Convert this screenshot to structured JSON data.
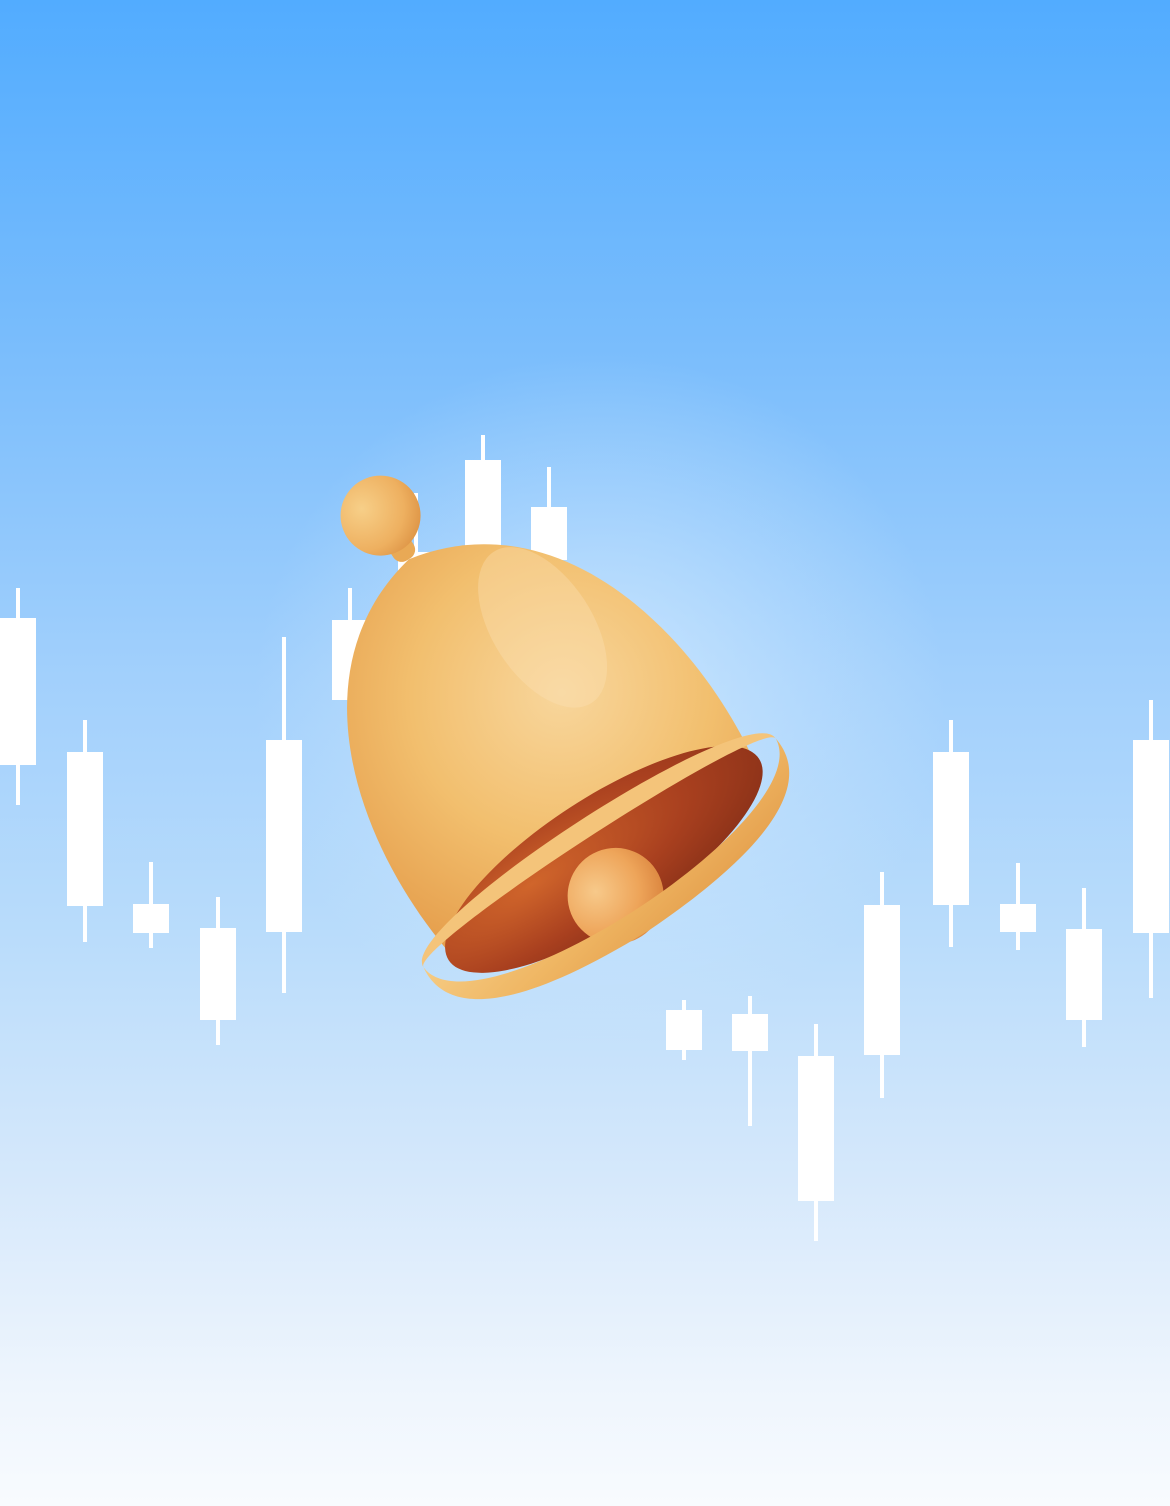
{
  "illustration": {
    "subject": "notification-bell-over-candlestick-chart",
    "colors": {
      "sky_top": "#52acff",
      "sky_bottom": "#f8fbfe",
      "candle": "#ffffff",
      "bell_light": "#f7cf8a",
      "bell_mid": "#f0b562",
      "bell_dark": "#c8652a",
      "bell_inner": "#9b3a1c"
    },
    "icons": [
      "bell-icon",
      "candlestick-chart"
    ]
  }
}
